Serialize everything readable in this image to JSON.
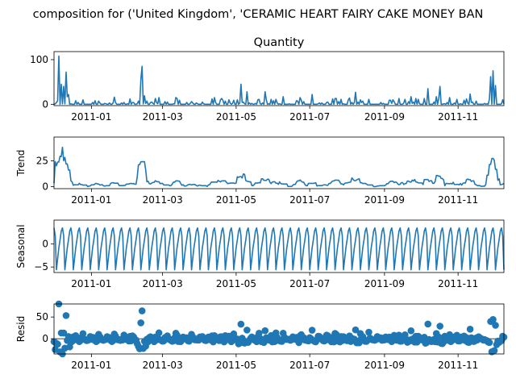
{
  "figure": {
    "suptitle": "composition for ('United Kingdom', 'CERAMIC HEART FAIRY CAKE MONEY BAN"
  },
  "colors": {
    "series": "#1f77b4",
    "axis": "#000000",
    "background": "#ffffff"
  },
  "chart_data": [
    {
      "type": "line",
      "title": "Quantity",
      "ylabel": "",
      "ylim": [
        -3,
        118
      ],
      "yticks": [
        0,
        100
      ],
      "xticks": [
        "2011-01",
        "2011-03",
        "2011-05",
        "2011-07",
        "2011-09",
        "2011-11"
      ],
      "grid": false
    },
    {
      "type": "line",
      "title": "",
      "ylabel": "Trend",
      "ylim": [
        -2,
        48
      ],
      "yticks": [
        0,
        25
      ],
      "xticks": [
        "2011-01",
        "2011-03",
        "2011-05",
        "2011-07",
        "2011-09",
        "2011-11"
      ],
      "grid": false
    },
    {
      "type": "line",
      "title": "",
      "ylabel": "Seasonal",
      "ylim": [
        -6.2,
        5.2
      ],
      "yticks": [
        -5,
        0
      ],
      "xticks": [
        "2011-01",
        "2011-03",
        "2011-05",
        "2011-07",
        "2011-09",
        "2011-11"
      ],
      "grid": false
    },
    {
      "type": "scatter",
      "title": "",
      "ylabel": "Resid",
      "ylim": [
        -35,
        80
      ],
      "yticks": [
        0,
        50
      ],
      "xticks": [
        "2011-01",
        "2011-03",
        "2011-05",
        "2011-07",
        "2011-09",
        "2011-11"
      ],
      "grid": false
    }
  ]
}
